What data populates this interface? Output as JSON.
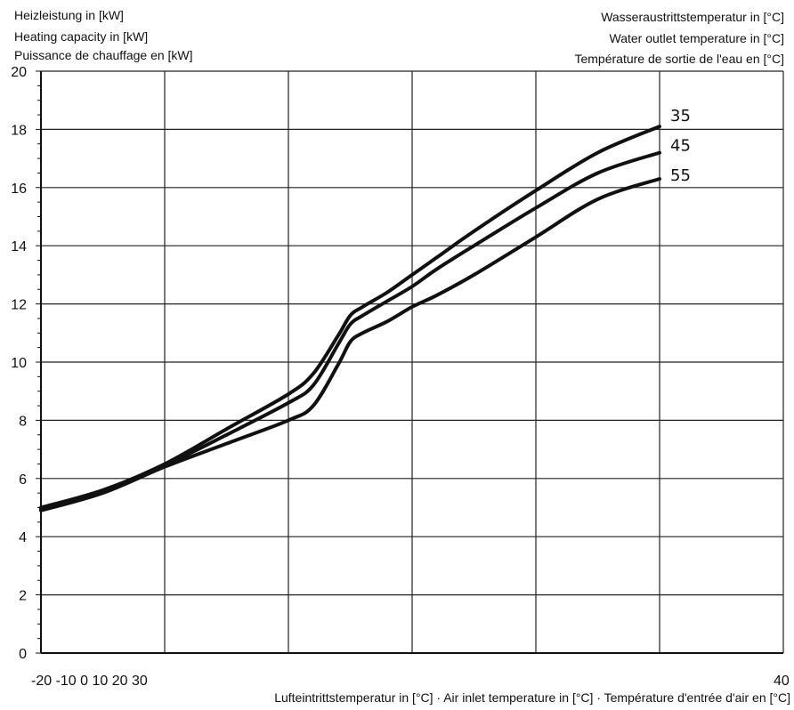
{
  "chart_data": {
    "type": "line",
    "title": "",
    "ylabel": [
      "Heizleistung in [kW]",
      "Heating capacity in [kW]",
      "Puissance de chauffage en [kW]"
    ],
    "legend_title": [
      "Wasseraustrittstemperatur in [°C]",
      "Water outlet temperature in [°C]",
      "Température de sortie de l'eau en [°C]"
    ],
    "xlabel": "Lufteintrittstemperatur in [°C] · Air inlet temperature in [°C] · Température d'entrée d'air en [°C]",
    "x_tick_labels": [
      "-20 -10 0 10 20 30",
      "40"
    ],
    "ylim": [
      0,
      20
    ],
    "yticks": [
      0,
      2,
      4,
      6,
      8,
      10,
      12,
      14,
      16,
      18,
      20
    ],
    "xlim": [
      -20,
      40
    ],
    "grid": true,
    "x": [
      -20,
      -15,
      -10,
      -5,
      0,
      2,
      4,
      5,
      6,
      8,
      10,
      12,
      15,
      20,
      25,
      30
    ],
    "series": [
      {
        "name": "35",
        "values": [
          5.0,
          5.6,
          6.5,
          7.7,
          8.9,
          9.6,
          10.9,
          11.6,
          11.9,
          12.4,
          13.0,
          13.6,
          14.5,
          15.9,
          17.2,
          18.1
        ]
      },
      {
        "name": "45",
        "values": [
          4.95,
          5.55,
          6.45,
          7.5,
          8.6,
          9.2,
          10.6,
          11.3,
          11.6,
          12.1,
          12.6,
          13.2,
          14.0,
          15.3,
          16.5,
          17.2
        ]
      },
      {
        "name": "55",
        "values": [
          4.9,
          5.5,
          6.4,
          7.2,
          8.0,
          8.5,
          9.9,
          10.7,
          11.0,
          11.4,
          11.9,
          12.3,
          13.0,
          14.3,
          15.6,
          16.3
        ]
      }
    ]
  }
}
